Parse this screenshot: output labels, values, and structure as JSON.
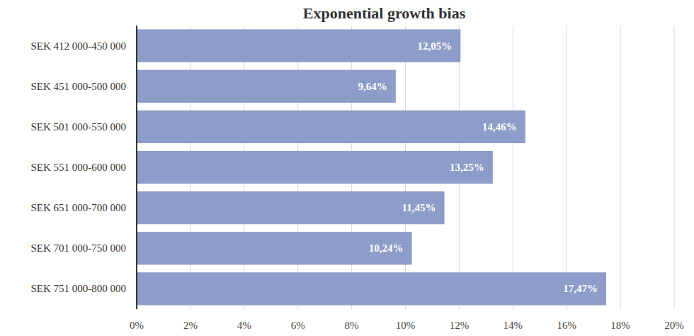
{
  "chart_data": {
    "type": "bar",
    "title": "Exponential growth bias",
    "orientation": "horizontal",
    "categories": [
      "SEK 412 000-450 000",
      "SEK 451 000-500 000",
      "SEK 501 000-550 000",
      "SEK 551 000-600 000",
      "SEK 651 000-700 000",
      "SEK 701 000-750 000",
      "SEK 751 000-800 000"
    ],
    "values": [
      12.05,
      9.64,
      14.46,
      13.25,
      11.45,
      10.24,
      17.47
    ],
    "value_labels": [
      "12,05%",
      "9,64%",
      "14,46%",
      "13,25%",
      "11,45%",
      "10,24%",
      "17,47%"
    ],
    "color": "#8d9cc8",
    "xlim": [
      0,
      20
    ],
    "xticks": [
      {
        "value": 0,
        "label": "0%"
      },
      {
        "value": 2,
        "label": "2%"
      },
      {
        "value": 4,
        "label": "4%"
      },
      {
        "value": 6,
        "label": "6%"
      },
      {
        "value": 8,
        "label": "8%"
      },
      {
        "value": 10,
        "label": "10%"
      },
      {
        "value": 12,
        "label": "12%"
      },
      {
        "value": 14,
        "label": "14%"
      },
      {
        "value": 16,
        "label": "16%"
      },
      {
        "value": 18,
        "label": "18%"
      },
      {
        "value": 20,
        "label": "20%"
      }
    ],
    "grid": true,
    "data_labels": true
  }
}
